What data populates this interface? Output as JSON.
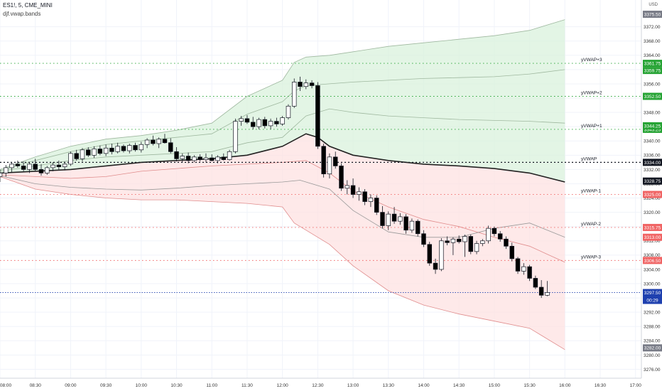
{
  "header": {
    "symbol_line": "ES1!, 5, CME_MINI",
    "indicator_line": "djf.vwap.bands",
    "currency": "USD"
  },
  "colors": {
    "bull_candle": "#ffffff",
    "bear_candle": "#000000",
    "wick": "#131722",
    "vwap": "#222222",
    "upper_fill": "#d9f2dc",
    "lower_fill": "#fde2e2",
    "upper_band": "#9fb89f",
    "lower_band": "#e08c8c",
    "level_green": "#26a334",
    "level_red": "#f06464",
    "level_black": "#131722",
    "last_price": "#1e40af"
  },
  "chart_data": {
    "type": "candlestick",
    "symbol": "ES1!",
    "interval": "5",
    "exchange": "CME_MINI",
    "indicator": "djf.vwap.bands",
    "ylim": [
      3273.5,
      3379.5
    ],
    "y_ticks": [
      3372.0,
      3368.0,
      3364.0,
      3360.0,
      3356.0,
      3352.0,
      3348.0,
      3344.0,
      3340.0,
      3336.0,
      3332.0,
      3328.0,
      3324.0,
      3320.0,
      3316.0,
      3312.0,
      3308.0,
      3304.0,
      3300.0,
      3296.0,
      3292.0,
      3288.0,
      3284.0,
      3280.0,
      3276.0
    ],
    "x_ticks": [
      "08:00",
      "08:30",
      "09:00",
      "09:30",
      "10:00",
      "10:30",
      "11:00",
      "11:30",
      "12:00",
      "12:30",
      "13:00",
      "13:30",
      "14:00",
      "14:30",
      "15:00",
      "15:30",
      "16:00",
      "16:30",
      "17:00"
    ],
    "x_range_minutes": [
      480,
      1025
    ],
    "candles": [
      {
        "t": 480,
        "o": 3330.0,
        "h": 3332.0,
        "l": 3328.5,
        "c": 3331.0
      },
      {
        "t": 485,
        "o": 3331.0,
        "h": 3333.25,
        "l": 3330.0,
        "c": 3332.5
      },
      {
        "t": 490,
        "o": 3332.5,
        "h": 3334.0,
        "l": 3331.25,
        "c": 3333.5
      },
      {
        "t": 495,
        "o": 3333.5,
        "h": 3334.5,
        "l": 3332.5,
        "c": 3333.0
      },
      {
        "t": 500,
        "o": 3333.0,
        "h": 3334.25,
        "l": 3331.5,
        "c": 3332.0
      },
      {
        "t": 505,
        "o": 3332.0,
        "h": 3334.0,
        "l": 3331.0,
        "c": 3333.5
      },
      {
        "t": 510,
        "o": 3333.5,
        "h": 3335.0,
        "l": 3331.5,
        "c": 3332.0
      },
      {
        "t": 515,
        "o": 3332.0,
        "h": 3333.5,
        "l": 3330.25,
        "c": 3331.0
      },
      {
        "t": 520,
        "o": 3331.0,
        "h": 3333.0,
        "l": 3330.5,
        "c": 3332.5
      },
      {
        "t": 525,
        "o": 3332.5,
        "h": 3334.0,
        "l": 3331.5,
        "c": 3333.25
      },
      {
        "t": 530,
        "o": 3333.25,
        "h": 3334.5,
        "l": 3332.0,
        "c": 3332.75
      },
      {
        "t": 535,
        "o": 3332.75,
        "h": 3334.0,
        "l": 3331.75,
        "c": 3333.5
      },
      {
        "t": 540,
        "o": 3333.5,
        "h": 3337.0,
        "l": 3333.0,
        "c": 3336.5
      },
      {
        "t": 545,
        "o": 3336.5,
        "h": 3337.5,
        "l": 3334.5,
        "c": 3335.0
      },
      {
        "t": 550,
        "o": 3335.0,
        "h": 3338.0,
        "l": 3334.25,
        "c": 3337.5
      },
      {
        "t": 555,
        "o": 3337.5,
        "h": 3338.25,
        "l": 3335.5,
        "c": 3336.0
      },
      {
        "t": 560,
        "o": 3336.0,
        "h": 3338.5,
        "l": 3335.25,
        "c": 3337.75
      },
      {
        "t": 565,
        "o": 3337.75,
        "h": 3338.75,
        "l": 3336.0,
        "c": 3336.5
      },
      {
        "t": 570,
        "o": 3336.5,
        "h": 3339.0,
        "l": 3335.75,
        "c": 3338.0
      },
      {
        "t": 575,
        "o": 3338.0,
        "h": 3339.25,
        "l": 3336.25,
        "c": 3337.0
      },
      {
        "t": 580,
        "o": 3337.0,
        "h": 3339.5,
        "l": 3336.5,
        "c": 3338.5
      },
      {
        "t": 585,
        "o": 3338.5,
        "h": 3339.0,
        "l": 3336.75,
        "c": 3337.25
      },
      {
        "t": 590,
        "o": 3337.25,
        "h": 3339.25,
        "l": 3336.5,
        "c": 3338.75
      },
      {
        "t": 595,
        "o": 3338.75,
        "h": 3339.5,
        "l": 3337.0,
        "c": 3337.5
      },
      {
        "t": 600,
        "o": 3337.5,
        "h": 3339.75,
        "l": 3336.75,
        "c": 3339.0
      },
      {
        "t": 605,
        "o": 3339.0,
        "h": 3340.75,
        "l": 3338.0,
        "c": 3340.25
      },
      {
        "t": 610,
        "o": 3340.25,
        "h": 3341.5,
        "l": 3338.75,
        "c": 3339.25
      },
      {
        "t": 615,
        "o": 3339.25,
        "h": 3341.0,
        "l": 3338.0,
        "c": 3340.5
      },
      {
        "t": 620,
        "o": 3340.5,
        "h": 3342.0,
        "l": 3339.25,
        "c": 3339.5
      },
      {
        "t": 625,
        "o": 3339.5,
        "h": 3340.75,
        "l": 3336.5,
        "c": 3337.0
      },
      {
        "t": 630,
        "o": 3337.0,
        "h": 3338.25,
        "l": 3334.25,
        "c": 3335.0
      },
      {
        "t": 635,
        "o": 3335.0,
        "h": 3336.5,
        "l": 3334.0,
        "c": 3335.75
      },
      {
        "t": 640,
        "o": 3335.75,
        "h": 3336.75,
        "l": 3333.75,
        "c": 3334.5
      },
      {
        "t": 645,
        "o": 3334.5,
        "h": 3336.0,
        "l": 3334.0,
        "c": 3335.5
      },
      {
        "t": 650,
        "o": 3335.5,
        "h": 3336.25,
        "l": 3334.25,
        "c": 3334.75
      },
      {
        "t": 655,
        "o": 3334.75,
        "h": 3336.5,
        "l": 3334.0,
        "c": 3335.25
      },
      {
        "t": 660,
        "o": 3335.25,
        "h": 3336.25,
        "l": 3334.25,
        "c": 3334.5
      },
      {
        "t": 665,
        "o": 3334.5,
        "h": 3336.0,
        "l": 3333.75,
        "c": 3335.5
      },
      {
        "t": 670,
        "o": 3335.5,
        "h": 3336.5,
        "l": 3334.5,
        "c": 3334.75
      },
      {
        "t": 675,
        "o": 3334.75,
        "h": 3337.5,
        "l": 3334.5,
        "c": 3337.0
      },
      {
        "t": 680,
        "o": 3337.0,
        "h": 3346.25,
        "l": 3336.5,
        "c": 3345.5
      },
      {
        "t": 685,
        "o": 3345.5,
        "h": 3347.0,
        "l": 3344.25,
        "c": 3346.25
      },
      {
        "t": 690,
        "o": 3346.25,
        "h": 3347.25,
        "l": 3344.75,
        "c": 3345.25
      },
      {
        "t": 695,
        "o": 3345.25,
        "h": 3346.75,
        "l": 3343.25,
        "c": 3344.0
      },
      {
        "t": 700,
        "o": 3344.0,
        "h": 3346.5,
        "l": 3343.25,
        "c": 3346.0
      },
      {
        "t": 705,
        "o": 3346.0,
        "h": 3346.75,
        "l": 3343.5,
        "c": 3344.25
      },
      {
        "t": 710,
        "o": 3344.25,
        "h": 3346.25,
        "l": 3343.25,
        "c": 3345.5
      },
      {
        "t": 715,
        "o": 3345.5,
        "h": 3346.5,
        "l": 3344.0,
        "c": 3344.75
      },
      {
        "t": 720,
        "o": 3344.75,
        "h": 3347.0,
        "l": 3344.25,
        "c": 3346.5
      },
      {
        "t": 725,
        "o": 3346.5,
        "h": 3350.25,
        "l": 3346.0,
        "c": 3349.75
      },
      {
        "t": 730,
        "o": 3349.75,
        "h": 3357.5,
        "l": 3349.25,
        "c": 3356.5
      },
      {
        "t": 735,
        "o": 3356.5,
        "h": 3358.0,
        "l": 3354.0,
        "c": 3355.25
      },
      {
        "t": 740,
        "o": 3355.25,
        "h": 3357.25,
        "l": 3354.5,
        "c": 3356.25
      },
      {
        "t": 745,
        "o": 3356.25,
        "h": 3357.0,
        "l": 3354.75,
        "c": 3355.5
      },
      {
        "t": 750,
        "o": 3355.5,
        "h": 3356.5,
        "l": 3337.75,
        "c": 3338.5
      },
      {
        "t": 755,
        "o": 3338.5,
        "h": 3339.25,
        "l": 3329.75,
        "c": 3330.75
      },
      {
        "t": 760,
        "o": 3330.75,
        "h": 3336.5,
        "l": 3329.5,
        "c": 3335.5
      },
      {
        "t": 765,
        "o": 3335.5,
        "h": 3337.0,
        "l": 3332.25,
        "c": 3333.0
      },
      {
        "t": 770,
        "o": 3333.0,
        "h": 3333.75,
        "l": 3326.0,
        "c": 3326.75
      },
      {
        "t": 775,
        "o": 3326.75,
        "h": 3329.0,
        "l": 3325.0,
        "c": 3327.5
      },
      {
        "t": 780,
        "o": 3327.5,
        "h": 3329.5,
        "l": 3324.0,
        "c": 3325.0
      },
      {
        "t": 785,
        "o": 3325.0,
        "h": 3327.0,
        "l": 3323.25,
        "c": 3325.75
      },
      {
        "t": 790,
        "o": 3325.75,
        "h": 3326.5,
        "l": 3322.0,
        "c": 3323.0
      },
      {
        "t": 795,
        "o": 3323.0,
        "h": 3325.0,
        "l": 3321.5,
        "c": 3324.0
      },
      {
        "t": 800,
        "o": 3324.0,
        "h": 3324.75,
        "l": 3319.25,
        "c": 3320.0
      },
      {
        "t": 805,
        "o": 3320.0,
        "h": 3321.75,
        "l": 3315.5,
        "c": 3316.25
      },
      {
        "t": 810,
        "o": 3316.25,
        "h": 3320.25,
        "l": 3315.0,
        "c": 3319.5
      },
      {
        "t": 815,
        "o": 3319.5,
        "h": 3321.5,
        "l": 3316.75,
        "c": 3317.5
      },
      {
        "t": 820,
        "o": 3317.5,
        "h": 3319.75,
        "l": 3316.5,
        "c": 3318.75
      },
      {
        "t": 825,
        "o": 3318.75,
        "h": 3319.5,
        "l": 3314.0,
        "c": 3315.0
      },
      {
        "t": 830,
        "o": 3315.0,
        "h": 3318.25,
        "l": 3314.25,
        "c": 3317.5
      },
      {
        "t": 835,
        "o": 3317.5,
        "h": 3318.0,
        "l": 3313.25,
        "c": 3314.0
      },
      {
        "t": 840,
        "o": 3314.0,
        "h": 3315.0,
        "l": 3310.25,
        "c": 3311.0
      },
      {
        "t": 845,
        "o": 3311.0,
        "h": 3311.75,
        "l": 3305.0,
        "c": 3305.75
      },
      {
        "t": 850,
        "o": 3305.75,
        "h": 3307.0,
        "l": 3302.75,
        "c": 3304.0
      },
      {
        "t": 855,
        "o": 3304.0,
        "h": 3312.75,
        "l": 3303.5,
        "c": 3312.0
      },
      {
        "t": 860,
        "o": 3312.0,
        "h": 3313.25,
        "l": 3310.75,
        "c": 3311.5
      },
      {
        "t": 865,
        "o": 3311.5,
        "h": 3313.0,
        "l": 3308.0,
        "c": 3312.5
      },
      {
        "t": 870,
        "o": 3312.5,
        "h": 3313.5,
        "l": 3311.25,
        "c": 3311.75
      },
      {
        "t": 875,
        "o": 3311.75,
        "h": 3313.75,
        "l": 3307.5,
        "c": 3313.25
      },
      {
        "t": 880,
        "o": 3313.25,
        "h": 3313.75,
        "l": 3308.25,
        "c": 3309.0
      },
      {
        "t": 885,
        "o": 3309.0,
        "h": 3312.0,
        "l": 3308.25,
        "c": 3311.25
      },
      {
        "t": 890,
        "o": 3311.25,
        "h": 3312.5,
        "l": 3310.5,
        "c": 3312.0
      },
      {
        "t": 895,
        "o": 3312.0,
        "h": 3316.25,
        "l": 3311.25,
        "c": 3315.5
      },
      {
        "t": 900,
        "o": 3315.5,
        "h": 3316.0,
        "l": 3313.25,
        "c": 3314.0
      },
      {
        "t": 905,
        "o": 3314.0,
        "h": 3314.75,
        "l": 3311.75,
        "c": 3312.5
      },
      {
        "t": 910,
        "o": 3312.5,
        "h": 3313.25,
        "l": 3309.75,
        "c": 3310.5
      },
      {
        "t": 915,
        "o": 3310.5,
        "h": 3311.5,
        "l": 3306.25,
        "c": 3307.0
      },
      {
        "t": 920,
        "o": 3307.0,
        "h": 3307.5,
        "l": 3302.75,
        "c": 3303.5
      },
      {
        "t": 925,
        "o": 3303.5,
        "h": 3305.75,
        "l": 3302.5,
        "c": 3304.75
      },
      {
        "t": 930,
        "o": 3304.75,
        "h": 3305.25,
        "l": 3300.75,
        "c": 3301.5
      },
      {
        "t": 935,
        "o": 3301.5,
        "h": 3302.25,
        "l": 3298.5,
        "c": 3299.0
      },
      {
        "t": 940,
        "o": 3299.0,
        "h": 3301.0,
        "l": 3296.0,
        "c": 3296.75
      },
      {
        "t": 945,
        "o": 3296.75,
        "h": 3300.75,
        "l": 3296.5,
        "c": 3297.5
      }
    ],
    "vwap": {
      "t": [
        480,
        510,
        540,
        570,
        600,
        630,
        660,
        690,
        720,
        740,
        750,
        760,
        780,
        810,
        840,
        870,
        900,
        930,
        960
      ],
      "v": [
        3331.0,
        3331.5,
        3332.0,
        3333.0,
        3334.0,
        3334.5,
        3335.0,
        3336.0,
        3338.5,
        3342.0,
        3341.0,
        3338.5,
        3336.0,
        3334.5,
        3333.5,
        3333.0,
        3332.25,
        3331.0,
        3328.5
      ]
    },
    "band_plus3": {
      "t": [
        480,
        510,
        540,
        570,
        600,
        630,
        660,
        690,
        720,
        730,
        740,
        760,
        780,
        810,
        840,
        870,
        900,
        930,
        960
      ],
      "v": [
        3332.0,
        3335.5,
        3338.5,
        3340.5,
        3341.5,
        3343.0,
        3345.0,
        3352.5,
        3357.0,
        3362.0,
        3363.5,
        3364.0,
        3365.0,
        3366.5,
        3367.5,
        3368.5,
        3369.5,
        3371.0,
        3374.0
      ]
    },
    "band_plus2": {
      "t": [
        480,
        510,
        540,
        570,
        600,
        630,
        660,
        690,
        720,
        730,
        740,
        760,
        780,
        810,
        840,
        870,
        900,
        930,
        960
      ],
      "v": [
        3331.75,
        3334.5,
        3337.0,
        3339.0,
        3340.0,
        3341.0,
        3342.0,
        3347.5,
        3351.0,
        3354.0,
        3355.5,
        3356.0,
        3356.5,
        3357.0,
        3357.5,
        3357.75,
        3358.0,
        3358.75,
        3360.0
      ]
    },
    "band_plus1": {
      "t": [
        480,
        510,
        540,
        570,
        600,
        630,
        660,
        690,
        720,
        740,
        760,
        780,
        810,
        840,
        870,
        900,
        930,
        960
      ],
      "v": [
        3331.5,
        3333.0,
        3334.5,
        3335.5,
        3336.0,
        3336.5,
        3337.0,
        3339.5,
        3341.0,
        3347.0,
        3349.0,
        3348.0,
        3347.0,
        3346.5,
        3346.0,
        3345.75,
        3345.5,
        3345.0
      ]
    },
    "band_minus1": {
      "t": [
        480,
        510,
        540,
        570,
        600,
        630,
        660,
        690,
        720,
        740,
        760,
        780,
        810,
        840,
        870,
        900,
        930,
        960
      ],
      "v": [
        3330.5,
        3330.0,
        3329.5,
        3330.0,
        3331.5,
        3332.25,
        3333.0,
        3333.5,
        3334.0,
        3334.5,
        3331.0,
        3326.0,
        3321.5,
        3318.0,
        3316.0,
        3313.0,
        3310.5,
        3306.0
      ]
    },
    "band_minus2": {
      "t": [
        480,
        510,
        540,
        570,
        600,
        630,
        660,
        690,
        720,
        735,
        760,
        780,
        810,
        840,
        870,
        900,
        930,
        960
      ],
      "v": [
        3330.25,
        3328.0,
        3327.0,
        3326.5,
        3326.25,
        3326.75,
        3327.5,
        3328.0,
        3328.5,
        3329.0,
        3326.5,
        3320.5,
        3314.5,
        3313.0,
        3313.0,
        3315.5,
        3317.0,
        3313.0
      ]
    },
    "band_minus3": {
      "t": [
        480,
        510,
        540,
        570,
        600,
        630,
        660,
        690,
        720,
        730,
        740,
        760,
        780,
        810,
        840,
        870,
        900,
        930,
        960
      ],
      "v": [
        3330.0,
        3326.5,
        3325.0,
        3324.0,
        3323.5,
        3323.5,
        3323.0,
        3322.5,
        3321.5,
        3317.0,
        3315.0,
        3311.0,
        3305.0,
        3298.0,
        3294.0,
        3291.5,
        3289.5,
        3287.5,
        3281.5
      ]
    },
    "levels": [
      {
        "name": "yVWAP+3",
        "price": 3361.75,
        "tag": "3361.75",
        "kind": "green"
      },
      {
        "name": "yVWAP+2",
        "price": 3352.5,
        "tag": "3352.50",
        "kind": "green"
      },
      {
        "name": "yVWAP+1",
        "price": 3343.25,
        "tag": "3343.25",
        "kind": "green"
      },
      {
        "name": "yVWAP",
        "price": 3334.0,
        "tag": "3334.00",
        "kind": "black"
      },
      {
        "name": "yVWAP-1",
        "price": 3325.0,
        "tag": "3325.00",
        "kind": "red"
      },
      {
        "name": "yVWAP-2",
        "price": 3315.75,
        "tag": "3315.75",
        "kind": "red"
      },
      {
        "name": "yVWAP-3",
        "price": 3306.5,
        "tag": "3306.50",
        "kind": "red"
      }
    ],
    "right_tags": [
      {
        "price": 3375.5,
        "text": "3375.50",
        "bg": "#787b86"
      },
      {
        "price": 3359.75,
        "text": "3359.75",
        "bg": "#26a334"
      },
      {
        "price": 3344.25,
        "text": "3344.25",
        "bg": "#26a334"
      },
      {
        "price": 3328.75,
        "text": "3328.75",
        "bg": "#131722"
      },
      {
        "price": 3313.0,
        "text": "3313.00",
        "bg": "#f06464"
      },
      {
        "price": 3297.5,
        "text": "3297.50",
        "bg": "#f06464"
      },
      {
        "price": 3282.0,
        "text": "3282.00",
        "bg": "#787b86"
      }
    ],
    "last_price": {
      "price": 3297.5,
      "text": "3297.50",
      "countdown": "00:29"
    }
  }
}
